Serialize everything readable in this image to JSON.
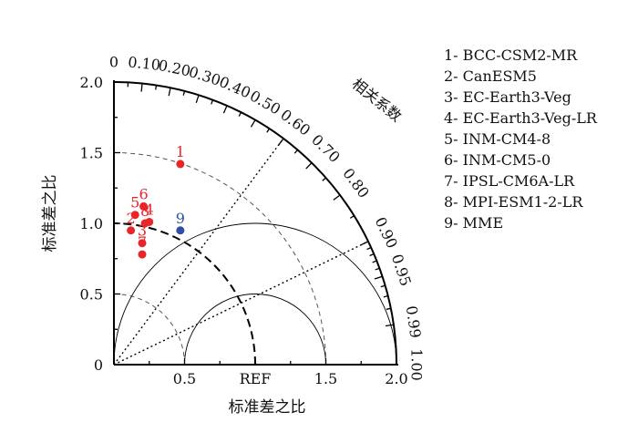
{
  "chart_data": {
    "type": "taylor",
    "title": "",
    "xlabel": "标准差之比",
    "ylabel": "标准差之比",
    "corr_label": "相关系数",
    "ref_label": "REF",
    "std_range": [
      0,
      2.0
    ],
    "std_ticks_y": [
      "0",
      "0.5",
      "1.0",
      "1.5",
      "2.0"
    ],
    "std_ticks_x": [
      {
        "value": 0.5,
        "label": "0.5"
      },
      {
        "value": 1.0,
        "label": "REF"
      },
      {
        "value": 1.5,
        "label": "1.5"
      },
      {
        "value": 2.0,
        "label": "2.0"
      }
    ],
    "std_grid_dashed": [
      0.5,
      1.5
    ],
    "ref_std": 1.0,
    "rms_circles": [
      0.5,
      1.0
    ],
    "corr_ticks": [
      {
        "value": 0,
        "label": "0"
      },
      {
        "value": 0.1,
        "label": "0.10"
      },
      {
        "value": 0.2,
        "label": "0.20"
      },
      {
        "value": 0.3,
        "label": "0.30"
      },
      {
        "value": 0.4,
        "label": "0.40"
      },
      {
        "value": 0.5,
        "label": "0.50"
      },
      {
        "value": 0.6,
        "label": "0.60"
      },
      {
        "value": 0.7,
        "label": "0.70"
      },
      {
        "value": 0.8,
        "label": "0.80"
      },
      {
        "value": 0.9,
        "label": "0.90"
      },
      {
        "value": 0.95,
        "label": "0.95"
      },
      {
        "value": 0.99,
        "label": "0.99"
      },
      {
        "value": 1.0,
        "label": "1.00"
      }
    ],
    "corr_minor_ticks": [
      0.05,
      0.15,
      0.25,
      0.35,
      0.45,
      0.55,
      0.65,
      0.75,
      0.85,
      0.91,
      0.92,
      0.93,
      0.94,
      0.96,
      0.97,
      0.98
    ],
    "corr_rays": [
      0.6,
      0.9
    ],
    "points": [
      {
        "id": "1",
        "x": 0.47,
        "y": 1.42,
        "color": "#e8262a"
      },
      {
        "id": "2",
        "x": 0.12,
        "y": 0.95,
        "color": "#e8262a"
      },
      {
        "id": "3",
        "x": 0.2,
        "y": 0.86,
        "color": "#e8262a"
      },
      {
        "id": "4",
        "x": 0.25,
        "y": 1.01,
        "color": "#e8262a"
      },
      {
        "id": "5",
        "x": 0.15,
        "y": 1.06,
        "color": "#e8262a"
      },
      {
        "id": "6",
        "x": 0.21,
        "y": 1.12,
        "color": "#e8262a"
      },
      {
        "id": "7",
        "x": 0.2,
        "y": 0.78,
        "color": "#e8262a"
      },
      {
        "id": "8",
        "x": 0.22,
        "y": 1.0,
        "color": "#e8262a"
      },
      {
        "id": "9",
        "x": 0.47,
        "y": 0.95,
        "color": "#2c4fa3"
      }
    ],
    "legend": [
      "1- BCC-CSM2-MR",
      "2- CanESM5",
      "3- EC-Earth3-Veg",
      "4- EC-Earth3-Veg-LR",
      "5- INM-CM4-8",
      "6- INM-CM5-0",
      "7- IPSL-CM6A-LR",
      "8- MPI-ESM1-2-LR",
      "9- MME"
    ]
  }
}
